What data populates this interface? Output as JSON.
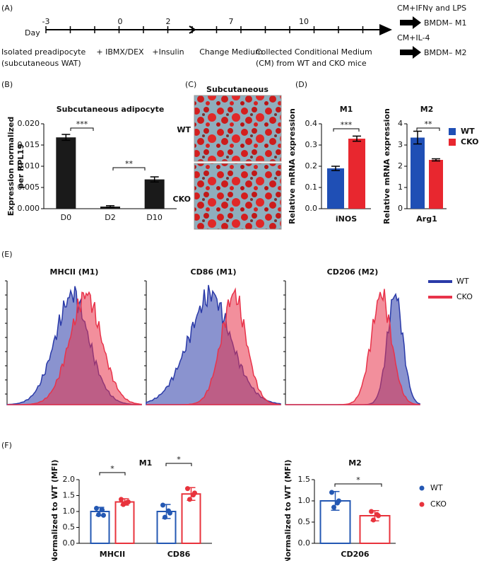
{
  "panel_labels": [
    "(A)",
    "(B)",
    "(C)",
    "(D)",
    "(E)",
    "(F)"
  ],
  "timeline": {
    "axis_label": "Day",
    "steps": [
      {
        "day": "-3",
        "text": [
          "Isolated preadipocyte",
          "(subcutaneous WAT)"
        ]
      },
      {
        "day": "0",
        "text": [
          "+ IBMX/DEX"
        ]
      },
      {
        "day": "2",
        "text": [
          "+Insulin"
        ]
      },
      {
        "day": "7",
        "text": [
          "Change Medium"
        ]
      },
      {
        "day": "10",
        "text": [
          "Collected Conditional Medium",
          "(CM) from WT and CKO mice"
        ]
      }
    ],
    "outcomes": [
      {
        "treatment": "CM+IFNγ and LPS",
        "result": "BMDM– M1"
      },
      {
        "treatment": "CM+IL-4",
        "result": "BMDM– M2"
      }
    ]
  },
  "micrograph": {
    "title": "Subcutaneous",
    "rows": [
      "WT",
      "CKO"
    ]
  },
  "flow": {
    "panels": [
      "MHCII (M1)",
      "CD86 (M1)",
      "CD206 (M2)"
    ],
    "legend": [
      {
        "name": "WT",
        "color": "#2a3aa8"
      },
      {
        "name": "CKO",
        "color": "#e8334a"
      }
    ]
  },
  "chart_data": [
    {
      "type": "bar",
      "title": "Subcutaneous adipocyte",
      "ylabel": [
        "Expression normalized",
        "per RPL19"
      ],
      "categories": [
        "D0",
        "D2",
        "D10"
      ],
      "values": [
        0.0168,
        0.0005,
        0.0069
      ],
      "errors": [
        0.0007,
        0.0002,
        0.0006
      ],
      "color": "#1a1a1a",
      "ylim": [
        0,
        0.02
      ],
      "yticks": [
        {
          "value": 0,
          "label": "0.000"
        },
        0.005,
        {
          "value": 0.01,
          "label": "0.010"
        },
        0.015,
        {
          "value": 0.02,
          "label": "0.020"
        }
      ],
      "annotations": [
        "***",
        "**"
      ]
    },
    {
      "type": "bar",
      "title": "M1",
      "ylabel": "Relative mRNA expression",
      "categories": [
        "iNOS"
      ],
      "series": [
        {
          "name": "WT",
          "color": "#1f4fb5",
          "values": [
            0.19
          ],
          "errors": [
            0.01
          ]
        },
        {
          "name": "CKO",
          "color": "#e8272f",
          "values": [
            0.33
          ],
          "errors": [
            0.012
          ]
        }
      ],
      "ylim": [
        0,
        0.4
      ],
      "yticks": [
        {
          "value": 0,
          "label": "0.0"
        },
        0.1,
        0.2,
        0.3,
        0.4
      ],
      "annotations": [
        "***"
      ]
    },
    {
      "type": "bar",
      "title": "M2",
      "ylabel": "Relative mRNA expression",
      "categories": [
        "Arg1"
      ],
      "series": [
        {
          "name": "WT",
          "color": "#1f4fb5",
          "values": [
            3.35
          ],
          "errors": [
            0.3
          ]
        },
        {
          "name": "CKO",
          "color": "#e8272f",
          "values": [
            2.3
          ],
          "errors": [
            0.05
          ]
        }
      ],
      "ylim": [
        0,
        4
      ],
      "yticks": [
        0,
        1,
        2,
        3,
        4
      ],
      "annotations": [
        "**"
      ],
      "legend": "right"
    },
    {
      "type": "bar",
      "title": "M1",
      "ylabel": "Normalized to WT (MFI)",
      "categories": [
        "MHCII",
        "CD86"
      ],
      "hollow": true,
      "series": [
        {
          "name": "WT",
          "color": "#2458b3",
          "values": [
            1.0,
            1.0
          ],
          "errors": [
            0.13,
            0.22
          ],
          "points": [
            [
              1.1,
              0.88,
              0.9,
              1.05
            ],
            [
              1.2,
              0.95,
              0.82,
              1.02
            ]
          ]
        },
        {
          "name": "CKO",
          "color": "#e8333c",
          "values": [
            1.3,
            1.55
          ],
          "errors": [
            0.1,
            0.2
          ],
          "points": [
            [
              1.38,
              1.3,
              1.22,
              1.28
            ],
            [
              1.72,
              1.58,
              1.38,
              1.52
            ]
          ]
        }
      ],
      "ylim": [
        0,
        2
      ],
      "yticks": [
        {
          "value": 0,
          "label": "0.0"
        },
        0.5,
        {
          "value": 1,
          "label": "1.0"
        },
        1.5,
        {
          "value": 2,
          "label": "2.0"
        }
      ],
      "annotations": [
        "*",
        "*"
      ]
    },
    {
      "type": "bar",
      "title": "M2",
      "ylabel": "Normalized to WT (MFI)",
      "categories": [
        "CD206"
      ],
      "hollow": true,
      "series": [
        {
          "name": "WT",
          "color": "#2458b3",
          "values": [
            1.0
          ],
          "errors": [
            0.22
          ],
          "points": [
            [
              1.2,
              1.0,
              0.85,
              0.95
            ]
          ]
        },
        {
          "name": "CKO",
          "color": "#e8333c",
          "values": [
            0.65
          ],
          "errors": [
            0.12
          ],
          "points": [
            [
              0.75,
              0.65,
              0.55,
              0.68
            ]
          ]
        }
      ],
      "ylim": [
        0,
        1.5
      ],
      "yticks": [
        {
          "value": 0,
          "label": "0.0"
        },
        0.5,
        {
          "value": 1,
          "label": "1.0"
        },
        1.5
      ],
      "annotations": [
        "*"
      ],
      "legend": "right"
    }
  ]
}
